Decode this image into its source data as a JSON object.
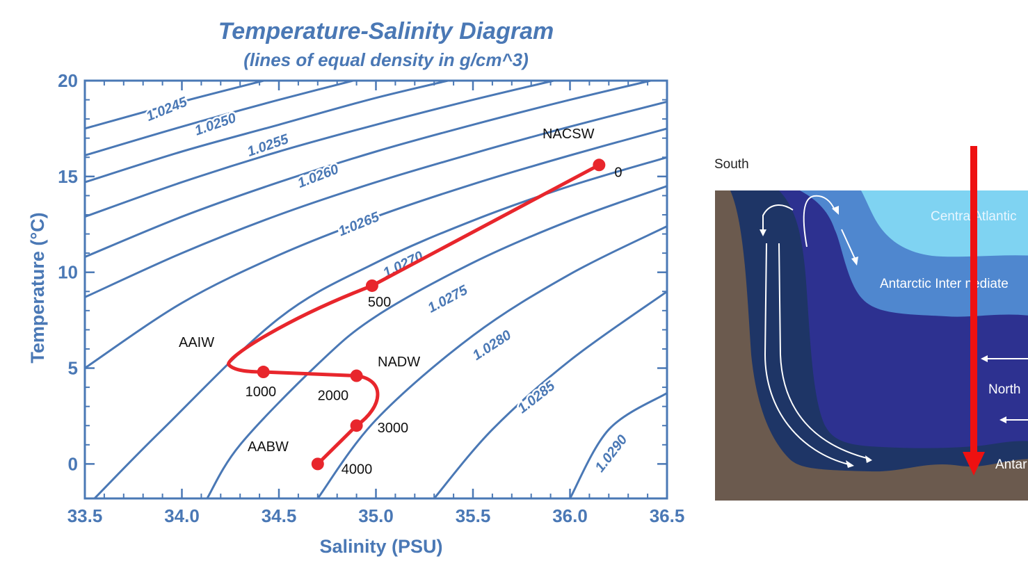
{
  "chart_data": {
    "type": "line",
    "title": "Temperature-Salinity Diagram",
    "subtitle": "(lines of equal density in g/cm^3)",
    "xlabel": "Salinity (PSU)",
    "ylabel": "Temperature (°C)",
    "xlim": [
      33.5,
      36.5
    ],
    "ylim": [
      -1.8,
      20
    ],
    "x_ticks": [
      "33.5",
      "34.0",
      "34.5",
      "35.0",
      "35.5",
      "36.0",
      "36.5"
    ],
    "y_ticks": [
      "0",
      "5",
      "10",
      "15",
      "20"
    ],
    "isopycnals": [
      {
        "label": "1.0245",
        "points": [
          [
            33.5,
            17.5
          ],
          [
            34.0,
            18.9
          ],
          [
            34.5,
            20.2
          ]
        ]
      },
      {
        "label": "1.0250",
        "points": [
          [
            33.5,
            16.1
          ],
          [
            34.0,
            17.6
          ],
          [
            34.5,
            19.0
          ],
          [
            35.0,
            20.3
          ]
        ]
      },
      {
        "label": "1.0255",
        "points": [
          [
            33.5,
            14.7
          ],
          [
            34.0,
            16.3
          ],
          [
            34.5,
            17.7
          ],
          [
            35.0,
            19.1
          ],
          [
            35.5,
            20.3
          ]
        ]
      },
      {
        "label": "1.0260",
        "points": [
          [
            33.5,
            12.9
          ],
          [
            34.0,
            14.7
          ],
          [
            34.5,
            16.3
          ],
          [
            35.0,
            17.7
          ],
          [
            35.5,
            19.0
          ],
          [
            36.0,
            20.2
          ]
        ]
      },
      {
        "label": "1.0265",
        "points": [
          [
            33.5,
            10.8
          ],
          [
            34.0,
            12.9
          ],
          [
            34.5,
            14.7
          ],
          [
            35.0,
            16.3
          ],
          [
            35.5,
            17.7
          ],
          [
            36.0,
            19.0
          ],
          [
            36.5,
            20.2
          ]
        ]
      },
      {
        "label": "1.0270",
        "points": [
          [
            33.5,
            8.7
          ],
          [
            34.0,
            11.0
          ],
          [
            34.5,
            13.0
          ],
          [
            35.0,
            14.7
          ],
          [
            35.5,
            16.2
          ],
          [
            36.0,
            17.6
          ],
          [
            36.5,
            18.9
          ]
        ]
      },
      {
        "label": "1.0275",
        "points": [
          [
            33.5,
            5.0
          ],
          [
            34.0,
            8.4
          ],
          [
            34.5,
            10.9
          ],
          [
            35.0,
            12.9
          ],
          [
            35.5,
            14.6
          ],
          [
            36.0,
            16.1
          ],
          [
            36.5,
            17.5
          ]
        ]
      },
      {
        "label": "1.0280",
        "points": [
          [
            33.55,
            -1.8
          ],
          [
            33.9,
            1.8
          ],
          [
            34.5,
            7.6
          ],
          [
            35.0,
            10.5
          ],
          [
            35.5,
            12.7
          ],
          [
            36.0,
            14.5
          ],
          [
            36.5,
            16.0
          ]
        ]
      },
      {
        "label": "",
        "points": [
          [
            34.13,
            -1.8
          ],
          [
            34.3,
            1.0
          ],
          [
            34.7,
            5.2
          ],
          [
            35.0,
            7.7
          ],
          [
            35.5,
            10.5
          ],
          [
            36.0,
            12.7
          ],
          [
            36.5,
            14.5
          ]
        ]
      },
      {
        "label": "1.0285",
        "points": [
          [
            34.7,
            -1.8
          ],
          [
            35.0,
            2.3
          ],
          [
            35.5,
            6.7
          ],
          [
            36.0,
            9.9
          ],
          [
            36.5,
            12.4
          ]
        ]
      },
      {
        "label": "",
        "points": [
          [
            35.3,
            -1.8
          ],
          [
            35.6,
            1.8
          ],
          [
            36.0,
            5.4
          ],
          [
            36.5,
            9.0
          ]
        ]
      },
      {
        "label": "1.0290",
        "points": [
          [
            36.0,
            -1.8
          ],
          [
            36.2,
            1.8
          ],
          [
            36.5,
            3.7
          ]
        ]
      }
    ],
    "series": [
      {
        "x": [
          36.15,
          34.98,
          34.42,
          34.9,
          34.9,
          34.7
        ],
        "y": [
          15.6,
          9.3,
          4.8,
          4.6,
          2.0,
          0.0
        ],
        "labels": [
          "0",
          "500",
          "1000",
          "2000",
          "3000",
          "4000"
        ]
      }
    ],
    "water_masses": [
      "NACSW",
      "AAIW",
      "NADW",
      "AABW"
    ],
    "grid": false
  },
  "section": {
    "south_label": "South",
    "layers": [
      "Centra  Atlantic",
      "Antarctic Inter nediate",
      "North",
      "Antar"
    ],
    "colors": {
      "seafloor": "#6b5a4e",
      "central_atlantic": "#7fd3f2",
      "intermediate": "#4f87cf",
      "north_atlantic_deep": "#2d3190",
      "antarctic_bottom": "#1e3566",
      "arrow": "#ee1111"
    }
  },
  "colors": {
    "chart_blue": "#4a78b5",
    "profile_red": "#e8262c"
  }
}
